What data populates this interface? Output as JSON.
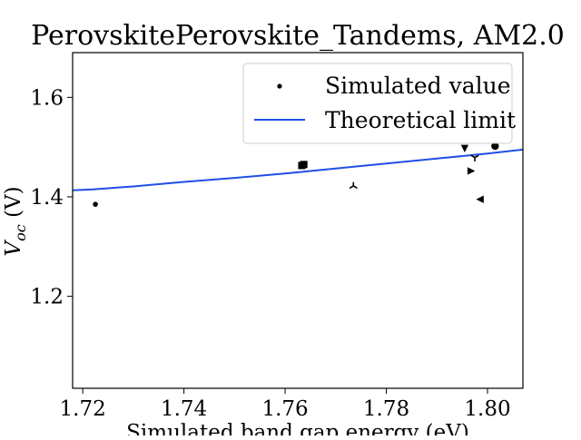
{
  "chart_data": {
    "type": "scatter",
    "title": "PerovskitePerovskite_Tandems, AM2.0",
    "xlabel": "Simulated band gap energy (eV)",
    "ylabel_main": "V",
    "ylabel_sub": "oc",
    "ylabel_unit": "(V)",
    "xlim": [
      1.718,
      1.807
    ],
    "ylim": [
      1.015,
      1.69
    ],
    "xticks": [
      "1.72",
      "1.74",
      "1.76",
      "1.78",
      "1.80"
    ],
    "xtick_values": [
      1.72,
      1.74,
      1.76,
      1.78,
      1.8
    ],
    "yticks": [
      "1.2",
      "1.4",
      "1.6"
    ],
    "ytick_values": [
      1.2,
      1.4,
      1.6
    ],
    "grid": false,
    "legend_position": "top-right",
    "series": [
      {
        "name": "Simulated value",
        "color": "#000000",
        "points": [
          {
            "x": 1.7225,
            "y": 1.385,
            "marker": "point"
          },
          {
            "x": 1.7633,
            "y": 1.463,
            "marker": "square"
          },
          {
            "x": 1.7637,
            "y": 1.465,
            "marker": "square"
          },
          {
            "x": 1.7735,
            "y": 1.422,
            "marker": "tri_up"
          },
          {
            "x": 1.7955,
            "y": 1.497,
            "marker": "triangle_down"
          },
          {
            "x": 1.7968,
            "y": 1.452,
            "marker": "triangle_right"
          },
          {
            "x": 1.7975,
            "y": 1.479,
            "marker": "tri_down"
          },
          {
            "x": 1.7985,
            "y": 1.395,
            "marker": "triangle_left"
          },
          {
            "x": 1.8015,
            "y": 1.502,
            "marker": "circle"
          }
        ]
      },
      {
        "name": "Theoretical limit",
        "color": "#1f4fe8",
        "x": [
          1.718,
          1.722,
          1.73,
          1.74,
          1.75,
          1.76,
          1.77,
          1.78,
          1.79,
          1.8,
          1.807
        ],
        "y": [
          1.413,
          1.415,
          1.421,
          1.43,
          1.438,
          1.447,
          1.457,
          1.467,
          1.477,
          1.487,
          1.495
        ]
      }
    ]
  }
}
